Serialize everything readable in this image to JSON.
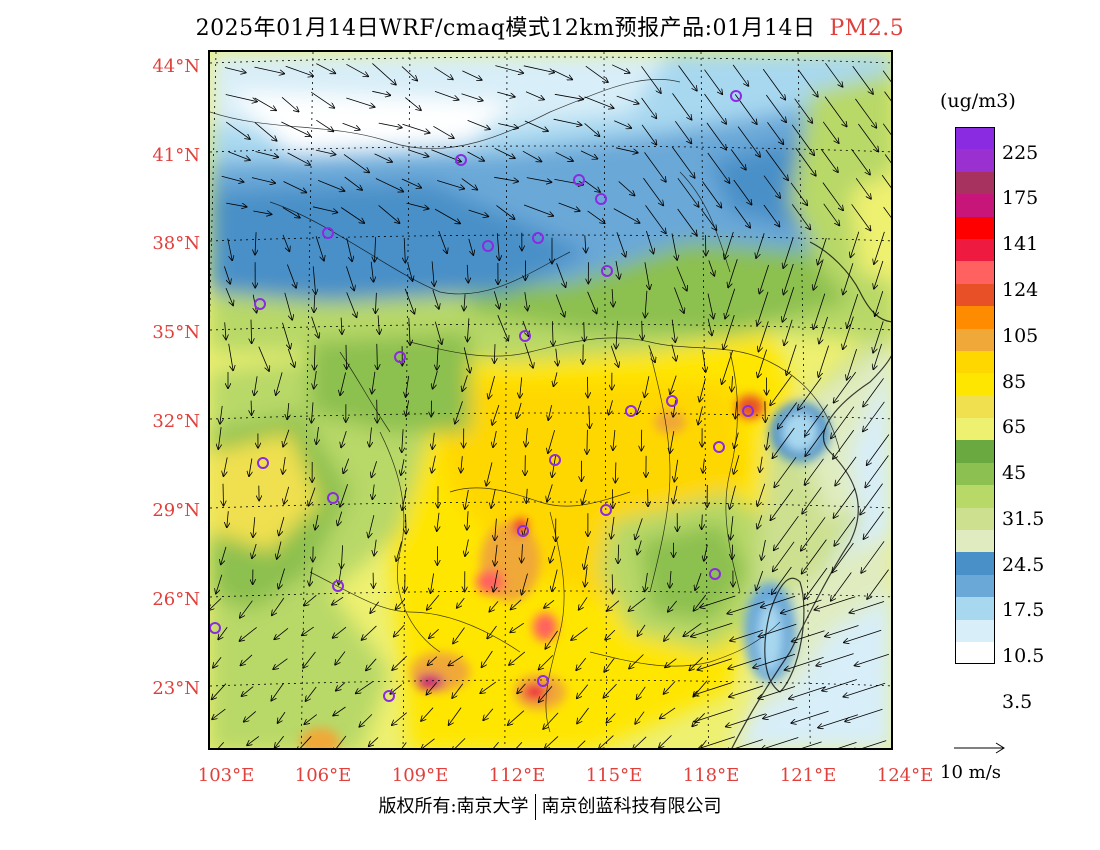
{
  "title": {
    "text": "2025年01月14日WRF/cmaq模式12km预报产品:01月14日",
    "variable": "PM2.5"
  },
  "map": {
    "lat_labels": [
      "44°N",
      "41°N",
      "38°N",
      "35°N",
      "32°N",
      "29°N",
      "26°N",
      "23°N"
    ],
    "lon_labels": [
      "103°E",
      "106°E",
      "109°E",
      "112°E",
      "115°E",
      "118°E",
      "121°E",
      "124°E"
    ],
    "lat_range": [
      21.0,
      44.5
    ],
    "lon_range": [
      102.8,
      124.0
    ]
  },
  "legend": {
    "unit": "(ug/m3)",
    "colors": [
      "#8a2be2",
      "#9b30d0",
      "#a8325f",
      "#c8157a",
      "#ff0000",
      "#ee1a40",
      "#ff6060",
      "#e85028",
      "#ff8c00",
      "#f0a838",
      "#ffd700",
      "#ffe600",
      "#f0e050",
      "#eef070",
      "#6aa840",
      "#8cc050",
      "#b8d868",
      "#cce090",
      "#e0ecc0",
      "#4a90c8",
      "#6aa8d8",
      "#a8d8f0",
      "#d8eef8",
      "#ffffff"
    ],
    "labels": [
      "225",
      "175",
      "141",
      "124",
      "105",
      "85",
      "65",
      "45",
      "31.5",
      "24.5",
      "17.5",
      "10.5",
      "3.5"
    ]
  },
  "wind_ref": {
    "label": "10 m/s"
  },
  "footer": {
    "left": "版权所有:南京大学",
    "right": "南京创蓝科技有限公司"
  },
  "colors": {
    "label_red": "#e0403c"
  }
}
